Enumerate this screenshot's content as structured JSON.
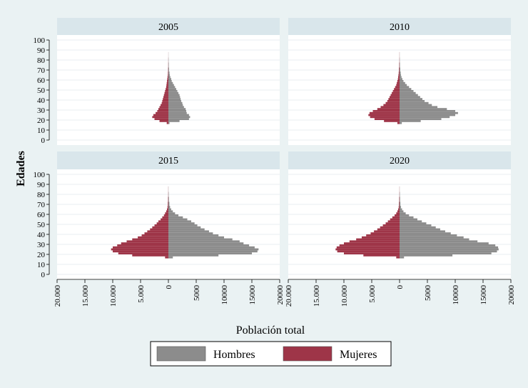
{
  "chart_data": {
    "type": "bar",
    "orientation": "horizontal",
    "layout": "population-pyramid",
    "facets": [
      "2005",
      "2010",
      "2015",
      "2020"
    ],
    "xlabel": "Población total",
    "ylabel": "Edades",
    "x_ticks": [
      "20.000",
      "15.000",
      "10.000",
      "5.000",
      "0",
      "5000",
      "10000",
      "15000",
      "20000"
    ],
    "y_ticks": [
      "0",
      "10",
      "20",
      "30",
      "40",
      "50",
      "60",
      "70",
      "80",
      "90",
      "100"
    ],
    "xlim": [
      -20000,
      20000
    ],
    "ylim": [
      -5,
      105
    ],
    "grid": true,
    "legend_position": "bottom",
    "legend": [
      {
        "name": "Hombres",
        "color": "#8c8c8c"
      },
      {
        "name": "Mujeres",
        "color": "#9e3548"
      }
    ],
    "series_ages": [
      17,
      19,
      21,
      23,
      25,
      27,
      29,
      31,
      33,
      35,
      37,
      39,
      41,
      43,
      45,
      47,
      49,
      51,
      53,
      55,
      57,
      59,
      61,
      63,
      65,
      67,
      70,
      75,
      80,
      85
    ],
    "panels": [
      {
        "year": "2005",
        "Hombres": [
          200,
          2000,
          3700,
          3900,
          3700,
          3300,
          3200,
          3100,
          2800,
          2600,
          2500,
          2300,
          2200,
          2100,
          2000,
          1800,
          1600,
          1400,
          1200,
          1000,
          800,
          600,
          500,
          350,
          250,
          200,
          120,
          70,
          40,
          20
        ],
        "Mujeres": [
          300,
          1600,
          2500,
          2900,
          2700,
          2300,
          2000,
          1800,
          1600,
          1400,
          1200,
          1100,
          1000,
          900,
          800,
          700,
          600,
          500,
          400,
          350,
          300,
          250,
          200,
          150,
          100,
          80,
          50,
          30,
          20,
          10
        ]
      },
      {
        "year": "2010",
        "Hombres": [
          400,
          3800,
          7500,
          9000,
          10000,
          10500,
          10000,
          8500,
          6800,
          5800,
          5200,
          4500,
          4100,
          3700,
          3300,
          2900,
          2500,
          2100,
          1700,
          1300,
          1000,
          700,
          500,
          350,
          250,
          200,
          120,
          70,
          40,
          20
        ],
        "Mujeres": [
          400,
          2800,
          4500,
          5300,
          5600,
          5400,
          4800,
          4000,
          3400,
          2900,
          2500,
          2200,
          2000,
          1800,
          1600,
          1400,
          1200,
          1000,
          800,
          600,
          500,
          400,
          300,
          250,
          200,
          150,
          100,
          60,
          30,
          20
        ]
      },
      {
        "year": "2015",
        "Hombres": [
          800,
          9000,
          15000,
          16000,
          16200,
          15500,
          14500,
          13500,
          12800,
          11500,
          10000,
          9000,
          8000,
          7300,
          6500,
          5800,
          5200,
          4700,
          4100,
          3400,
          2600,
          1800,
          1200,
          800,
          500,
          300,
          180,
          100,
          50,
          20
        ],
        "Mujeres": [
          600,
          6500,
          9000,
          10000,
          10300,
          10000,
          9200,
          8500,
          7500,
          6500,
          5500,
          4800,
          4300,
          3800,
          3300,
          2900,
          2500,
          2100,
          1800,
          1400,
          1100,
          800,
          600,
          400,
          250,
          150,
          100,
          60,
          30,
          20
        ]
      },
      {
        "year": "2020",
        "Hombres": [
          800,
          9500,
          16500,
          17500,
          17800,
          17700,
          17200,
          16000,
          14000,
          12500,
          11500,
          10300,
          9200,
          8200,
          7300,
          6500,
          5700,
          4800,
          4000,
          3200,
          2500,
          1700,
          1100,
          700,
          450,
          250,
          150,
          90,
          50,
          20
        ],
        "Mujeres": [
          600,
          6500,
          10000,
          11200,
          11500,
          11300,
          10800,
          10000,
          9000,
          7800,
          6800,
          6000,
          5200,
          4600,
          4000,
          3500,
          3000,
          2500,
          2100,
          1700,
          1300,
          900,
          600,
          400,
          250,
          150,
          100,
          60,
          30,
          20
        ]
      }
    ]
  }
}
